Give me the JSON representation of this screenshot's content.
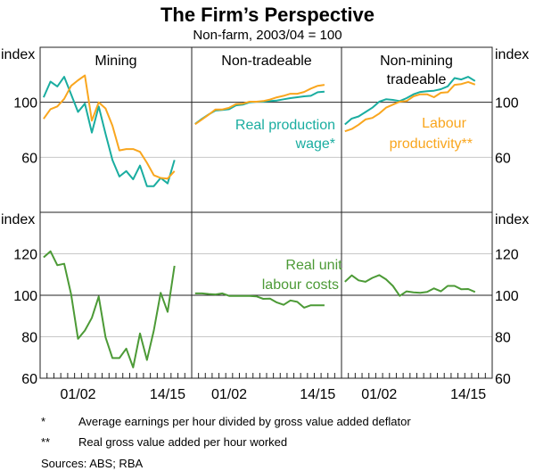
{
  "chart_data": {
    "type": "line",
    "title": "The Firm’s Perspective",
    "subtitle": "Non-farm, 2003/04 = 100",
    "ylabel": "index",
    "x_years": [
      1997,
      1998,
      1999,
      2000,
      2001,
      2002,
      2003,
      2004,
      2005,
      2006,
      2007,
      2008,
      2009,
      2010,
      2011,
      2012,
      2013,
      2014,
      2015,
      2016
    ],
    "x_tick_labels": [
      {
        "year": 2002,
        "label": "01/02"
      },
      {
        "year": 2015,
        "label": "14/15"
      }
    ],
    "xlim": [
      1996.5,
      2018.5
    ],
    "grid": true,
    "top": {
      "ylim": [
        20,
        140
      ],
      "yticks": [
        60,
        100
      ],
      "ytick_labels": [
        "60",
        "100"
      ]
    },
    "bottom": {
      "ylim": [
        60,
        140
      ],
      "yticks": [
        60,
        80,
        100,
        120
      ],
      "ytick_labels": [
        "60",
        "80",
        "100",
        "120"
      ]
    },
    "panels": [
      {
        "title": "Mining",
        "top_series": [
          {
            "name": "Real production wage*",
            "color": "#1AADA0",
            "values": [
              103.6,
              115,
              111.5,
              118.5,
              105.7,
              93,
              99,
              78,
              97,
              77,
              58,
              46,
              50,
              44,
              54,
              39,
              39,
              45,
              41,
              58
            ]
          },
          {
            "name": "Labour productivity**",
            "color": "#F9A61E",
            "values": [
              88,
              95,
              97,
              102.5,
              112,
              116,
              119.5,
              86.6,
              100,
              95.5,
              83,
              65,
              66,
              66,
              64,
              56,
              47,
              45,
              44.5,
              50
            ]
          }
        ],
        "bottom_series": [
          {
            "name": "Real unit labour costs",
            "color": "#4C9A36",
            "values": [
              118.3,
              121.2,
              114.5,
              115.2,
              100.4,
              79,
              83,
              89.1,
              99.4,
              79.7,
              69.7,
              69.7,
              74.3,
              65.2,
              81.6,
              68.8,
              83,
              101.2,
              92,
              114.2
            ]
          }
        ]
      },
      {
        "title": "Non-tradeable",
        "top_series": [
          {
            "name": "Real production wage*",
            "color": "#1AADA0",
            "values": [
              84.3,
              88,
              91.2,
              94,
              94.4,
              95,
              97.8,
              98.3,
              100,
              100.4,
              100.4,
              100.9,
              101.3,
              102.2,
              103,
              103.7,
              104.3,
              104.7,
              107.3,
              107.7
            ]
          },
          {
            "name": "Labour productivity**",
            "color": "#F9A61E",
            "values": [
              84,
              87.5,
              91,
              94.8,
              94.8,
              96,
              98.7,
              99,
              100.4,
              100.4,
              100.9,
              102,
              103.6,
              104.7,
              106.2,
              106.2,
              107.5,
              110,
              112,
              112.7
            ]
          }
        ],
        "bottom_series": [
          {
            "name": "Real unit labour costs",
            "color": "#4C9A36",
            "values": [
              100.9,
              100.9,
              100.6,
              100.4,
              100.9,
              99.7,
              99.7,
              99.7,
              99.7,
              99.5,
              98.3,
              98.4,
              96.5,
              95.4,
              97.5,
              96.8,
              94,
              95.2,
              95.2,
              95.2
            ]
          }
        ]
      },
      {
        "title": "Non-mining tradeable",
        "title_lines": [
          "Non-mining",
          "tradeable"
        ],
        "top_series": [
          {
            "name": "Real production wage*",
            "color": "#1AADA0",
            "values": [
              83.9,
              88.2,
              89.7,
              92.9,
              96.1,
              100.4,
              102.2,
              101.7,
              100.9,
              103,
              105.8,
              107.5,
              108,
              108.4,
              109.5,
              111.6,
              117.6,
              116.6,
              118.5,
              115.5
            ]
          },
          {
            "name": "Labour productivity**",
            "color": "#F9A61E",
            "values": [
              78.9,
              80.6,
              83.7,
              87.5,
              88.6,
              91.8,
              96.1,
              98.3,
              100.4,
              100.9,
              104.3,
              105.8,
              105.8,
              103.7,
              106.9,
              107.3,
              112.7,
              113.3,
              114.8,
              112.9
            ]
          }
        ],
        "bottom_series": [
          {
            "name": "Real unit labour costs",
            "color": "#4C9A36",
            "values": [
              106.5,
              109.6,
              107.2,
              106.5,
              108.4,
              109.7,
              107.7,
              104.5,
              99.7,
              101.9,
              101.4,
              101.2,
              101.6,
              103.3,
              101.9,
              104.5,
              104.5,
              102.9,
              103,
              101.6
            ]
          }
        ]
      }
    ],
    "annotations": {
      "wage_lines": [
        "Real production",
        "wage*"
      ],
      "productivity_lines": [
        "Labour",
        "productivity**"
      ],
      "rulc_lines": [
        "Real unit",
        "labour costs"
      ]
    },
    "footnotes": [
      {
        "mark": "*",
        "text": "Average earnings per hour divided by gross value added deflator"
      },
      {
        "mark": "**",
        "text": "Real gross value added per hour worked"
      }
    ],
    "sources": "Sources:  ABS; RBA"
  }
}
